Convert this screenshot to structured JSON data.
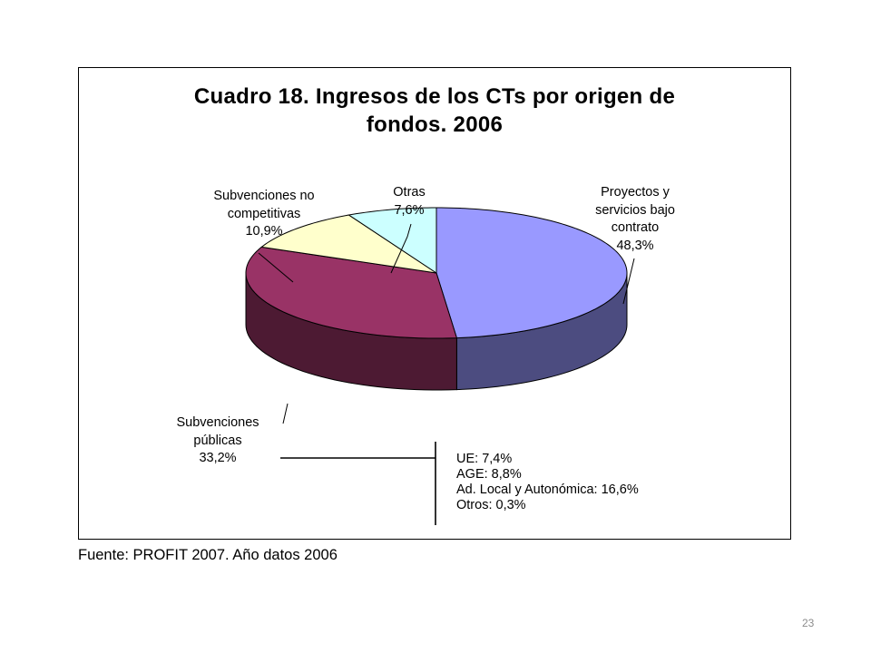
{
  "chart_data": {
    "type": "pie",
    "title_line1": "Cuadro 18. Ingresos de los CTs por origen de",
    "title_line2": "fondos. 2006",
    "slices": [
      {
        "label_lines": [
          "Proyectos y",
          "servicios bajo",
          "contrato"
        ],
        "pct_text": "48,3%",
        "value": 48.3,
        "color": "#9999ff",
        "side_color": "#4c4c80"
      },
      {
        "label_lines": [
          "Subvenciones",
          "públicas"
        ],
        "pct_text": "33,2%",
        "value": 33.2,
        "color": "#993366",
        "side_color": "#4d1a33"
      },
      {
        "label_lines": [
          "Subvenciones no",
          "competitivas"
        ],
        "pct_text": "10,9%",
        "value": 10.9,
        "color": "#ffffcc",
        "side_color": "#808066"
      },
      {
        "label_lines": [
          "Otras"
        ],
        "pct_text": "7,6%",
        "value": 7.6,
        "color": "#ccffff",
        "side_color": "#668080"
      }
    ],
    "detail": [
      "UE: 7,4%",
      "AGE: 8,8%",
      "Ad. Local y Autonómica: 16,6%",
      "Otros: 0,3%"
    ],
    "style": "3d"
  },
  "source_note": "Fuente: PROFIT 2007. Año datos 2006",
  "page_number": "23"
}
